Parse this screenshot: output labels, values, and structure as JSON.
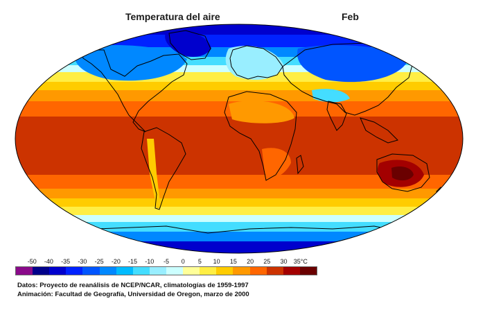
{
  "map": {
    "title": "Temperatura del aire",
    "month": "Feb"
  },
  "legend": {
    "ticks": [
      "-50",
      "-40",
      "-35",
      "-30",
      "-25",
      "-20",
      "-15",
      "-10",
      "-5",
      "0",
      "5",
      "10",
      "15",
      "20",
      "25",
      "30",
      "35°C"
    ],
    "colors": [
      "#8a0a8a",
      "#00008a",
      "#0000cd",
      "#0022ff",
      "#0055ff",
      "#0088ff",
      "#00bbff",
      "#44ddff",
      "#99eeff",
      "#ccffff",
      "#ffff99",
      "#ffee44",
      "#ffcc00",
      "#ff9900",
      "#ff6600",
      "#cc3300",
      "#a30000",
      "#6a0000"
    ]
  },
  "credits": {
    "line1": "Datos: Proyecto de reanálisis de NCEP/NCAR, climatologías de 1959-1997",
    "line2": "Animación: Facultad de Geografía, Universidad de Oregon, marzo de 2000"
  }
}
